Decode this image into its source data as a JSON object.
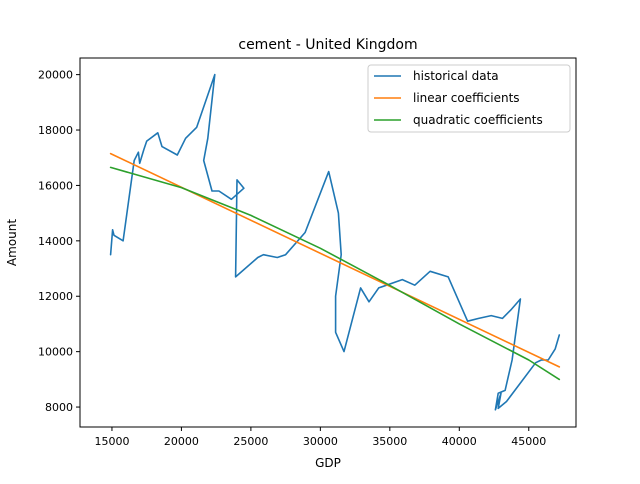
{
  "chart_data": {
    "type": "line",
    "title": "cement - United Kingdom",
    "xlabel": "GDP",
    "ylabel": "Amount",
    "xlim": [
      12700,
      48400
    ],
    "ylim": [
      7280,
      20600
    ],
    "xticks": [
      15000,
      20000,
      25000,
      30000,
      35000,
      40000,
      45000
    ],
    "yticks": [
      8000,
      10000,
      12000,
      14000,
      16000,
      18000,
      20000
    ],
    "grid": false,
    "legend_position": "top-right",
    "series": [
      {
        "name": "historical data",
        "color": "#1f77b4",
        "points": [
          [
            14900,
            13500
          ],
          [
            15050,
            14400
          ],
          [
            15150,
            14200
          ],
          [
            15800,
            14000
          ],
          [
            16600,
            16900
          ],
          [
            16900,
            17200
          ],
          [
            17000,
            16800
          ],
          [
            17300,
            17300
          ],
          [
            17500,
            17600
          ],
          [
            18300,
            17900
          ],
          [
            18600,
            17400
          ],
          [
            19700,
            17100
          ],
          [
            20300,
            17700
          ],
          [
            21100,
            18100
          ],
          [
            22400,
            20000
          ],
          [
            21900,
            17700
          ],
          [
            21600,
            16900
          ],
          [
            22200,
            15800
          ],
          [
            22700,
            15800
          ],
          [
            23600,
            15500
          ],
          [
            24500,
            15900
          ],
          [
            24000,
            16200
          ],
          [
            23900,
            12700
          ],
          [
            25500,
            13400
          ],
          [
            25900,
            13500
          ],
          [
            26900,
            13400
          ],
          [
            27500,
            13500
          ],
          [
            28900,
            14300
          ],
          [
            30600,
            16500
          ],
          [
            31300,
            15000
          ],
          [
            31500,
            13500
          ],
          [
            31100,
            12000
          ],
          [
            31100,
            10700
          ],
          [
            31700,
            10000
          ],
          [
            32900,
            12300
          ],
          [
            33500,
            11800
          ],
          [
            34200,
            12300
          ],
          [
            35900,
            12600
          ],
          [
            36800,
            12400
          ],
          [
            37900,
            12900
          ],
          [
            39200,
            12700
          ],
          [
            40600,
            11100
          ],
          [
            41400,
            11200
          ],
          [
            42300,
            11300
          ],
          [
            43100,
            11200
          ],
          [
            43700,
            11500
          ],
          [
            44400,
            11900
          ],
          [
            43800,
            9700
          ],
          [
            43300,
            8600
          ],
          [
            42800,
            8500
          ],
          [
            42600,
            7900
          ],
          [
            43000,
            8500
          ],
          [
            42800,
            7950
          ],
          [
            43400,
            8200
          ],
          [
            45500,
            9600
          ],
          [
            45900,
            9700
          ],
          [
            46400,
            9700
          ],
          [
            46900,
            10100
          ],
          [
            47200,
            10600
          ]
        ]
      },
      {
        "name": "linear coefficients",
        "color": "#ff7f0e",
        "points": [
          [
            14900,
            17150
          ],
          [
            47200,
            9450
          ]
        ]
      },
      {
        "name": "quadratic coefficients",
        "color": "#2ca02c",
        "points": [
          [
            14900,
            16650
          ],
          [
            20000,
            15920
          ],
          [
            25000,
            14920
          ],
          [
            30000,
            13730
          ],
          [
            35000,
            12390
          ],
          [
            40000,
            11000
          ],
          [
            45000,
            9700
          ],
          [
            47200,
            9000
          ]
        ]
      }
    ]
  }
}
